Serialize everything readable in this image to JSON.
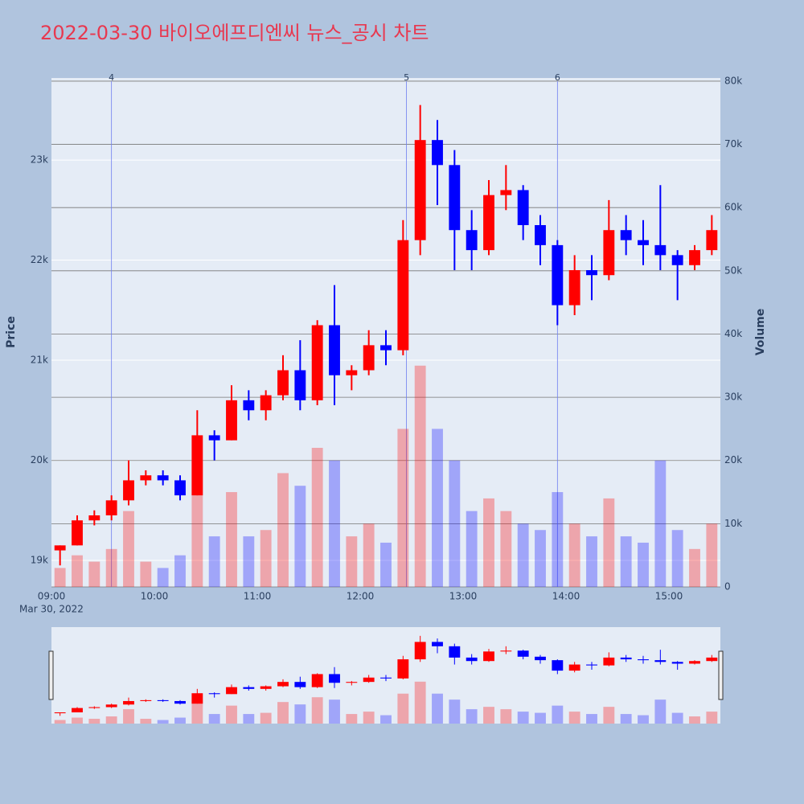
{
  "chart_data": {
    "type": "candlestick",
    "title": "2022-03-30 바이오에프디엔씨 뉴스_공시 차트",
    "y_title": "Price",
    "y2_title": "Volume",
    "x_date_label": "Mar 30, 2022",
    "increasing_color": "#ff0000",
    "decreasing_color": "#0000ff",
    "x": [
      "09:00",
      "09:10",
      "09:20",
      "09:30",
      "09:40",
      "09:50",
      "10:00",
      "10:10",
      "10:20",
      "10:30",
      "10:40",
      "10:50",
      "11:00",
      "11:10",
      "11:20",
      "11:30",
      "11:40",
      "11:50",
      "12:00",
      "12:10",
      "12:20",
      "12:30",
      "12:40",
      "12:50",
      "13:00",
      "13:10",
      "13:20",
      "13:30",
      "13:40",
      "13:50",
      "14:00",
      "14:10",
      "14:20",
      "14:30",
      "14:40",
      "14:50",
      "15:00",
      "15:10",
      "15:20"
    ],
    "open": [
      19100,
      19150,
      19400,
      19450,
      19600,
      19800,
      19850,
      19800,
      19650,
      20250,
      20200,
      20600,
      20500,
      20650,
      20900,
      20600,
      21350,
      20850,
      20900,
      21150,
      21100,
      22200,
      23200,
      22950,
      22300,
      22100,
      22650,
      22700,
      22350,
      22150,
      21550,
      21900,
      21850,
      22300,
      22200,
      22150,
      22050,
      21950,
      22100
    ],
    "high": [
      19150,
      19450,
      19500,
      19650,
      20000,
      19900,
      19900,
      19850,
      20500,
      20300,
      20750,
      20700,
      20700,
      21050,
      21200,
      21400,
      21750,
      20950,
      21300,
      21300,
      22400,
      23550,
      23400,
      23100,
      22500,
      22800,
      22950,
      22750,
      22450,
      22200,
      22050,
      22050,
      22600,
      22450,
      22400,
      22750,
      22100,
      22150,
      22450
    ],
    "low": [
      18950,
      19150,
      19350,
      19400,
      19550,
      19750,
      19750,
      19600,
      19650,
      20000,
      20200,
      20400,
      20400,
      20600,
      20500,
      20550,
      20550,
      20700,
      20850,
      20950,
      21050,
      22050,
      22550,
      21900,
      21900,
      22050,
      22500,
      22200,
      21950,
      21350,
      21450,
      21600,
      21800,
      22050,
      21950,
      21900,
      21600,
      21900,
      22050
    ],
    "close": [
      19150,
      19400,
      19450,
      19600,
      19800,
      19850,
      19800,
      19650,
      20250,
      20200,
      20600,
      20500,
      20650,
      20900,
      20600,
      21350,
      20850,
      20900,
      21150,
      21100,
      22200,
      23200,
      22950,
      22300,
      22100,
      22650,
      22700,
      22350,
      22150,
      21550,
      21900,
      21850,
      22300,
      22200,
      22150,
      22050,
      21950,
      22100,
      22300
    ],
    "volume": [
      3000,
      5000,
      4000,
      6000,
      12000,
      4000,
      3000,
      5000,
      20000,
      8000,
      15000,
      8000,
      9000,
      18000,
      16000,
      22000,
      20000,
      8000,
      10000,
      7000,
      25000,
      35000,
      25000,
      20000,
      12000,
      14000,
      12000,
      10000,
      9000,
      15000,
      10000,
      8000,
      14000,
      8000,
      7000,
      20000,
      9000,
      6000,
      10000
    ],
    "xlim": [
      "09:00",
      "15:30"
    ],
    "xticks": [
      "09:00",
      "10:00",
      "11:00",
      "12:00",
      "13:00",
      "14:00",
      "15:00"
    ],
    "ylim": [
      18735,
      23820
    ],
    "yticks": [
      {
        "value": 19000,
        "label": "19k"
      },
      {
        "value": 20000,
        "label": "20k"
      },
      {
        "value": 21000,
        "label": "21k"
      },
      {
        "value": 22000,
        "label": "22k"
      },
      {
        "value": 23000,
        "label": "23k"
      }
    ],
    "y2lim": [
      0,
      80500
    ],
    "y2ticks": [
      0,
      {
        "value": 10000,
        "label": "10k"
      },
      {
        "value": 20000,
        "label": "20k"
      },
      {
        "value": 30000,
        "label": "30k"
      },
      {
        "value": 40000,
        "label": "40k"
      },
      {
        "value": 50000,
        "label": "50k"
      },
      {
        "value": 60000,
        "label": "60k"
      },
      {
        "value": 70000,
        "label": "70k"
      },
      {
        "value": 80000,
        "label": "80k"
      }
    ],
    "annotations": [
      {
        "x": "09:35",
        "label": "4"
      },
      {
        "x": "12:27",
        "label": "5"
      },
      {
        "x": "13:55",
        "label": "6"
      }
    ]
  }
}
